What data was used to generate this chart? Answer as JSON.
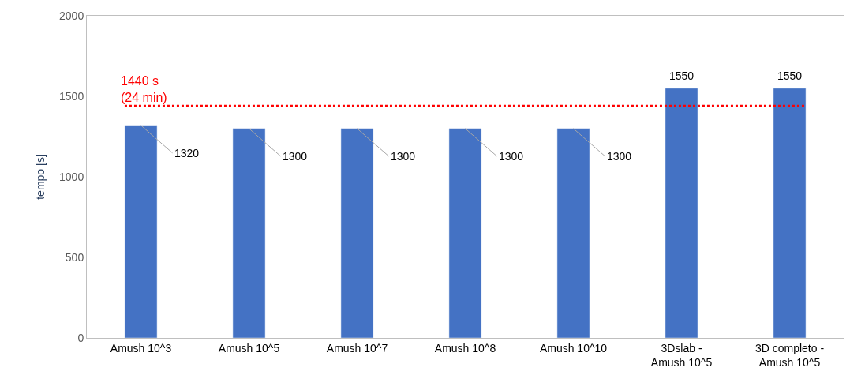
{
  "chart_data": {
    "type": "bar",
    "ylabel": "tempo [s]",
    "categories": [
      "Amush 10^3",
      "Amush 10^5",
      "Amush 10^7",
      "Amush 10^8",
      "Amush 10^10",
      "3Dslab -\nAmush 10^5",
      "3D completo -\nAmush 10^5"
    ],
    "values": [
      1320,
      1300,
      1300,
      1300,
      1300,
      1550,
      1550
    ],
    "color": "#4472c4",
    "ylim": [
      0,
      2000
    ],
    "yticks": [
      0,
      500,
      1000,
      1500,
      2000
    ],
    "data_labels": true,
    "ref_lines": [
      {
        "axis": "y",
        "value": 1440,
        "label": "1440 s\n(24 min)",
        "color": "#ff0000",
        "line_style": "dotted"
      }
    ]
  }
}
